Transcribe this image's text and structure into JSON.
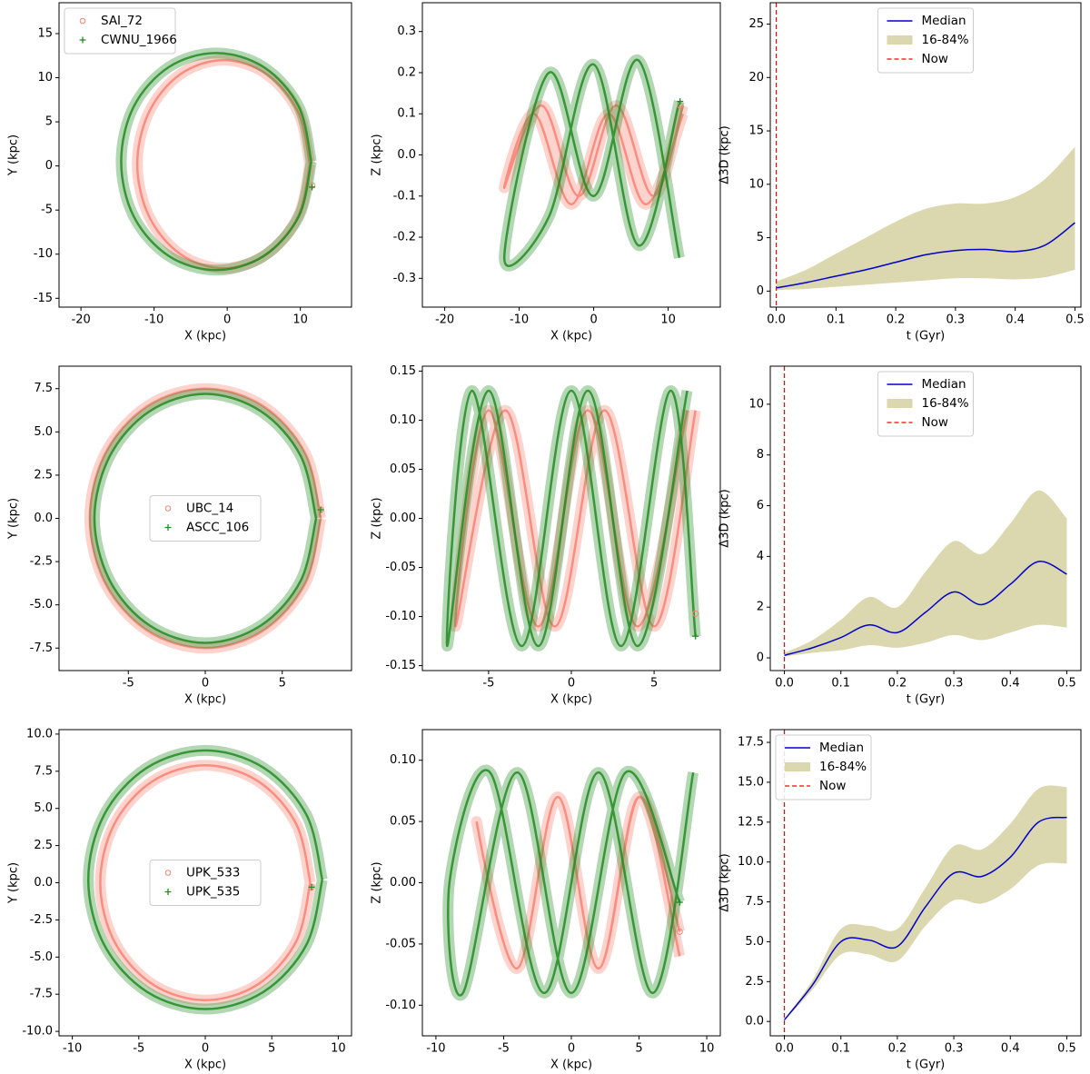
{
  "chart_data": [
    {
      "type": "line",
      "xlabel": "X (kpc)",
      "ylabel": "Y (kpc)",
      "legend": "upper left",
      "xlim": [
        -23,
        17
      ],
      "xticks": [
        -20,
        -10,
        0,
        10
      ],
      "ylim": [
        -16,
        18.5
      ],
      "yticks": [
        -15,
        -10,
        -5,
        0,
        5,
        10,
        15
      ],
      "series": [
        {
          "name": "SAI_72",
          "color": "#fa8072",
          "marker": "o",
          "x": [
            11.3,
            9.7,
            5.4,
            -0.5,
            -6.4,
            -10.7,
            -12.3,
            -10.7,
            -6.4,
            -0.5,
            5.4,
            9.7,
            11.3
          ],
          "y": [
            0.2,
            6.1,
            10.4,
            12.0,
            10.4,
            6.1,
            0.2,
            -5.7,
            -10.0,
            -11.6,
            -10.0,
            -5.7,
            0.2
          ],
          "current_x": 11.6,
          "current_y": -2.2
        },
        {
          "name": "CWNU_1966",
          "color": "#228b22",
          "marker": "+",
          "x": [
            11.5,
            9.8,
            5.0,
            -1.5,
            -8.0,
            -12.8,
            -14.5,
            -12.8,
            -8.0,
            -1.5,
            5.0,
            9.8,
            11.5
          ],
          "y": [
            0.5,
            6.7,
            11.2,
            12.8,
            11.2,
            6.7,
            0.5,
            -5.7,
            -10.2,
            -11.8,
            -10.2,
            -5.7,
            0.5
          ],
          "current_x": 11.6,
          "current_y": -2.4
        }
      ]
    },
    {
      "type": "line",
      "xlabel": "X (kpc)",
      "ylabel": "Z (kpc)",
      "xlim": [
        -23,
        17
      ],
      "xticks": [
        -20,
        -10,
        0,
        10
      ],
      "ylim": [
        -0.37,
        0.37
      ],
      "yticks": [
        -0.3,
        -0.2,
        -0.1,
        {
          "value": 0,
          "label": "0.0"
        },
        0.1,
        0.2,
        0.3
      ],
      "series": [
        {
          "name": "SAI_72",
          "color": "#fa8072",
          "marker": "o",
          "x": [
            12,
            8,
            3,
            -2,
            -7,
            -12,
            -8,
            -3,
            2,
            7,
            12
          ],
          "y": [
            0.12,
            -0.1,
            0.12,
            -0.1,
            0.12,
            -0.08,
            0.1,
            -0.12,
            0.1,
            -0.12,
            0.1
          ],
          "current_x": 11.6,
          "current_y": 0.12
        },
        {
          "name": "CWNU_1966",
          "color": "#228b22",
          "marker": "+",
          "x": [
            11.5,
            6,
            0,
            -6,
            -12,
            -6,
            0,
            6,
            11.5
          ],
          "y": [
            0.13,
            -0.22,
            0.22,
            -0.15,
            -0.25,
            0.2,
            -0.1,
            0.23,
            -0.25
          ],
          "current_x": 11.6,
          "current_y": 0.13
        }
      ]
    },
    {
      "type": "band",
      "xlabel": "t (Gyr)",
      "ylabel": "Δ3D (kpc)",
      "legend": "upper center",
      "xlim": [
        -0.01,
        0.51
      ],
      "xticks": [
        {
          "value": 0,
          "label": "0.0"
        },
        0.1,
        0.2,
        0.3,
        0.4,
        0.5
      ],
      "ylim": [
        -1.5,
        27
      ],
      "yticks": [
        0,
        5,
        10,
        15,
        20,
        25
      ],
      "x": [
        0,
        0.05,
        0.1,
        0.15,
        0.2,
        0.25,
        0.3,
        0.35,
        0.4,
        0.45,
        0.5
      ],
      "series": [
        {
          "name": "Median",
          "color": "#0000cc",
          "values": [
            0.3,
            0.8,
            1.4,
            2.0,
            2.7,
            3.4,
            3.8,
            3.9,
            3.7,
            4.3,
            6.4
          ]
        },
        {
          "name": "16-84%",
          "color": "#bdb76b",
          "lower": [
            0.1,
            0.2,
            0.4,
            0.6,
            0.8,
            1.0,
            1.2,
            1.2,
            1.1,
            1.3,
            2.0
          ],
          "upper": [
            0.9,
            2.0,
            3.5,
            5.0,
            6.5,
            7.7,
            8.2,
            8.2,
            8.8,
            10.5,
            13.5
          ]
        },
        {
          "name": "Now",
          "color": "#ff0000",
          "x": 0
        }
      ]
    },
    {
      "type": "line",
      "xlabel": "X (kpc)",
      "ylabel": "Y (kpc)",
      "legend": "center",
      "xlim": [
        -9.5,
        9.5
      ],
      "xticks": [
        -5,
        0,
        5
      ],
      "ylim": [
        -8.8,
        8.8
      ],
      "yticks": [
        -7.5,
        {
          "value": -5,
          "label": "-5.0"
        },
        -2.5,
        {
          "value": 0,
          "label": "0.0"
        },
        2.5,
        {
          "value": 5,
          "label": "5.0"
        },
        7.5
      ],
      "series": [
        {
          "name": "UBC_14",
          "color": "#fa8072",
          "marker": "o",
          "x": [
            7.5,
            6.5,
            3.75,
            0,
            -3.75,
            -6.5,
            -7.5,
            -6.5,
            -3.75,
            0,
            3.75,
            6.5,
            7.5
          ],
          "y": [
            0,
            3.75,
            6.5,
            7.5,
            6.5,
            3.75,
            0,
            -3.75,
            -6.5,
            -7.5,
            -6.5,
            -3.75,
            0
          ],
          "current_x": 7.5,
          "current_y": 0.5
        },
        {
          "name": "ASCC_106",
          "color": "#228b22",
          "marker": "+",
          "x": [
            7.2,
            6.2,
            3.6,
            0,
            -3.6,
            -6.2,
            -7.2,
            -6.2,
            -3.6,
            0,
            3.6,
            6.2,
            7.2
          ],
          "y": [
            0,
            3.6,
            6.2,
            7.2,
            6.2,
            3.6,
            0,
            -3.6,
            -6.2,
            -7.2,
            -6.2,
            -3.6,
            0
          ],
          "current_x": 7.5,
          "current_y": 0.5
        }
      ]
    },
    {
      "type": "line",
      "xlabel": "X (kpc)",
      "ylabel": "Z (kpc)",
      "xlim": [
        -9,
        9
      ],
      "xticks": [
        -5,
        0,
        5
      ],
      "ylim": [
        -0.155,
        0.155
      ],
      "yticks": [
        -0.15,
        {
          "value": -0.1,
          "label": "-0.10"
        },
        -0.05,
        {
          "value": 0,
          "label": "0.00"
        },
        0.05,
        {
          "value": 0.1,
          "label": "0.10"
        },
        0.15
      ],
      "series": [
        {
          "name": "UBC_14",
          "color": "#fa8072",
          "marker": "o",
          "x": [
            7.5,
            5,
            2,
            -1,
            -4,
            -7,
            -5,
            -2,
            1,
            4,
            7
          ],
          "y": [
            0.11,
            -0.11,
            0.11,
            -0.11,
            0.11,
            -0.11,
            0.11,
            -0.11,
            0.11,
            -0.11,
            0.11
          ],
          "current_x": 7.5,
          "current_y": -0.097
        },
        {
          "name": "ASCC_106",
          "color": "#228b22",
          "marker": "+",
          "x": [
            7.5,
            6,
            3,
            0,
            -3,
            -6,
            -7.5,
            -5,
            -2,
            1,
            4,
            7
          ],
          "y": [
            -0.12,
            0.13,
            -0.13,
            0.13,
            -0.13,
            0.13,
            -0.13,
            0.13,
            -0.13,
            0.13,
            -0.13,
            0.13
          ],
          "current_x": 7.5,
          "current_y": -0.12
        }
      ]
    },
    {
      "type": "band",
      "xlabel": "t (Gyr)",
      "ylabel": "Δ3D (kpc)",
      "legend": "upper center",
      "xlim": [
        -0.025,
        0.525
      ],
      "xticks": [
        {
          "value": 0,
          "label": "0.0"
        },
        0.1,
        0.2,
        0.3,
        0.4,
        0.5
      ],
      "ylim": [
        -0.5,
        11.5
      ],
      "yticks": [
        0,
        2,
        4,
        6,
        8,
        10
      ],
      "x": [
        0,
        0.05,
        0.1,
        0.15,
        0.2,
        0.25,
        0.3,
        0.35,
        0.4,
        0.45,
        0.5
      ],
      "series": [
        {
          "name": "Median",
          "color": "#0000cc",
          "values": [
            0.1,
            0.4,
            0.8,
            1.3,
            1.0,
            1.8,
            2.6,
            2.1,
            2.9,
            3.8,
            3.3
          ]
        },
        {
          "name": "16-84%",
          "color": "#bdb76b",
          "lower": [
            0.05,
            0.2,
            0.3,
            0.5,
            0.4,
            0.6,
            0.9,
            0.7,
            1.0,
            1.3,
            1.2
          ],
          "upper": [
            0.2,
            0.7,
            1.5,
            2.4,
            2.0,
            3.4,
            4.6,
            4.1,
            5.3,
            6.6,
            5.5
          ]
        },
        {
          "name": "Now",
          "color": "#ff0000",
          "x": 0
        }
      ]
    },
    {
      "type": "line",
      "xlabel": "X (kpc)",
      "ylabel": "Y (kpc)",
      "legend": "center",
      "xlim": [
        -11,
        11
      ],
      "xticks": [
        -10,
        -5,
        0,
        5,
        10
      ],
      "ylim": [
        -10.3,
        10.3
      ],
      "yticks": [
        {
          "value": -10,
          "label": "-10.0"
        },
        -7.5,
        {
          "value": -5,
          "label": "-5.0"
        },
        -2.5,
        {
          "value": 0,
          "label": "0.0"
        },
        2.5,
        {
          "value": 5,
          "label": "5.0"
        },
        7.5,
        {
          "value": 10,
          "label": "10.0"
        }
      ],
      "series": [
        {
          "name": "UPK_533",
          "color": "#fa8072",
          "marker": "o",
          "x": [
            7.9,
            6.84,
            3.95,
            0,
            -3.95,
            -6.84,
            -7.9,
            -6.84,
            -3.95,
            0,
            3.95,
            6.84,
            7.9
          ],
          "y": [
            0,
            3.95,
            6.84,
            7.9,
            6.84,
            3.95,
            0,
            -3.95,
            -6.84,
            -7.9,
            -6.84,
            -3.95,
            0
          ],
          "current_x": 8,
          "current_y": -0.3
        },
        {
          "name": "UPK_535",
          "color": "#228b22",
          "marker": "+",
          "x": [
            8.8,
            7.62,
            4.4,
            0,
            -4.4,
            -7.62,
            -8.8,
            -7.62,
            -4.4,
            0,
            4.4,
            7.62,
            8.8
          ],
          "y": [
            0.2,
            4.55,
            7.73,
            8.9,
            7.73,
            4.55,
            0.2,
            -4.15,
            -7.33,
            -8.5,
            -7.33,
            -4.15,
            0.2
          ],
          "current_x": 8,
          "current_y": -0.3
        }
      ]
    },
    {
      "type": "line",
      "xlabel": "X (kpc)",
      "ylabel": "Z (kpc)",
      "xlim": [
        -11,
        11
      ],
      "xticks": [
        -10,
        -5,
        0,
        5,
        10
      ],
      "ylim": [
        -0.125,
        0.125
      ],
      "yticks": [
        {
          "value": -0.1,
          "label": "-0.10"
        },
        -0.05,
        {
          "value": 0,
          "label": "0.00"
        },
        0.05,
        {
          "value": 0.1,
          "label": "0.10"
        }
      ],
      "series": [
        {
          "name": "UPK_533",
          "color": "#fa8072",
          "marker": "o",
          "x": [
            8,
            5,
            2,
            -1,
            -4,
            -7,
            -4,
            -1,
            2,
            5,
            8
          ],
          "y": [
            -0.04,
            0.07,
            -0.07,
            0.07,
            -0.07,
            0.05,
            -0.07,
            0.07,
            -0.07,
            0.07,
            -0.06
          ],
          "current_x": 8,
          "current_y": -0.04
        },
        {
          "name": "UPK_535",
          "color": "#228b22",
          "marker": "+",
          "x": [
            8,
            4,
            0,
            -4,
            -8,
            -9,
            -6,
            -2,
            2,
            6,
            9
          ],
          "y": [
            -0.016,
            0.09,
            -0.09,
            0.09,
            -0.09,
            0,
            0.09,
            -0.09,
            0.09,
            -0.09,
            0.09
          ],
          "current_x": 8,
          "current_y": -0.016
        }
      ]
    },
    {
      "type": "band",
      "xlabel": "t (Gyr)",
      "ylabel": "Δ3D (kpc)",
      "legend": "upper left",
      "xlim": [
        -0.025,
        0.525
      ],
      "xticks": [
        {
          "value": 0,
          "label": "0.0"
        },
        0.1,
        0.2,
        0.3,
        0.4,
        0.5
      ],
      "ylim": [
        -0.9,
        18.3
      ],
      "yticks": [
        {
          "value": 0,
          "label": "0.0"
        },
        2.5,
        {
          "value": 5,
          "label": "5.0"
        },
        7.5,
        {
          "value": 10,
          "label": "10.0"
        },
        12.5,
        {
          "value": 15,
          "label": "15.0"
        },
        17.5
      ],
      "x": [
        0,
        0.05,
        0.1,
        0.15,
        0.2,
        0.25,
        0.3,
        0.35,
        0.4,
        0.45,
        0.5
      ],
      "series": [
        {
          "name": "Median",
          "color": "#0000cc",
          "values": [
            0.1,
            2.3,
            5.0,
            5.1,
            4.7,
            7.2,
            9.3,
            9.1,
            10.3,
            12.5,
            12.8
          ]
        },
        {
          "name": "16-84%",
          "color": "#bdb76b",
          "lower": [
            0.05,
            2.0,
            4.2,
            4.2,
            3.8,
            6.0,
            7.6,
            7.4,
            8.3,
            9.8,
            9.9
          ],
          "upper": [
            0.15,
            2.6,
            5.8,
            6.0,
            5.8,
            8.4,
            11.0,
            10.8,
            12.4,
            14.6,
            14.7
          ]
        },
        {
          "name": "Now",
          "color": "#ff0000",
          "x": 0
        }
      ]
    }
  ]
}
